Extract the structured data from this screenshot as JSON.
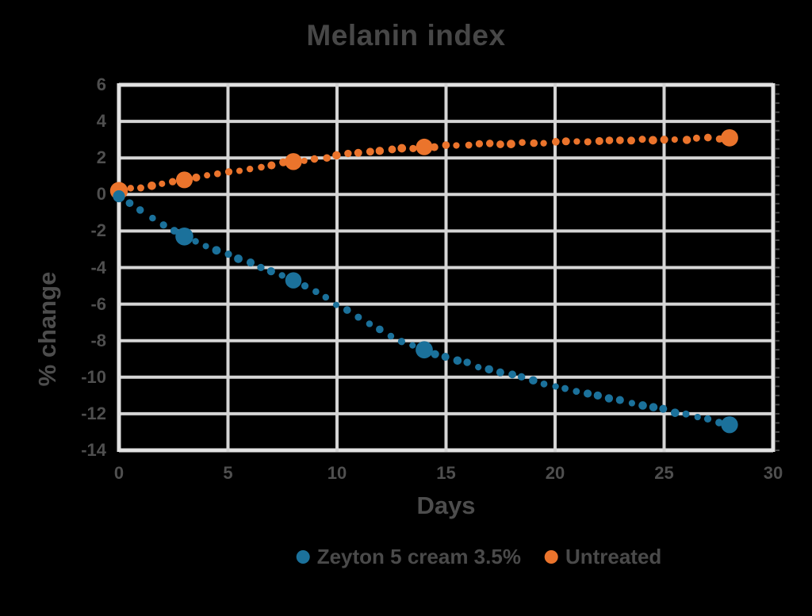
{
  "style": {
    "background": "#000000",
    "grid_color": "#D5D5D5",
    "border_color": "#E2E2E2",
    "text_color": "#4D4D4D"
  },
  "chart_data": {
    "type": "scatter",
    "title": "Melanin index",
    "xlabel": "Days",
    "ylabel": "% change",
    "xlim": [
      0,
      30
    ],
    "ylim": [
      -14,
      6
    ],
    "x_ticks": [
      0,
      5,
      10,
      15,
      20,
      25,
      30
    ],
    "y_ticks": [
      6,
      4,
      2,
      0,
      -2,
      -4,
      -6,
      -8,
      -10,
      -12,
      -14
    ],
    "grid": true,
    "line_style": "smooth-dotted",
    "legend_position": "bottom-center",
    "series": [
      {
        "name": "Zeyton 5 cream 3.5%",
        "color": "#1B719B",
        "x": [
          0,
          3,
          8,
          14,
          28
        ],
        "y": [
          -0.1,
          -2.3,
          -4.7,
          -8.5,
          -12.6
        ]
      },
      {
        "name": "Untreated",
        "color": "#EB742C",
        "x": [
          0,
          3,
          8,
          14,
          28
        ],
        "y": [
          0.2,
          0.8,
          1.8,
          2.6,
          3.1
        ]
      }
    ]
  }
}
